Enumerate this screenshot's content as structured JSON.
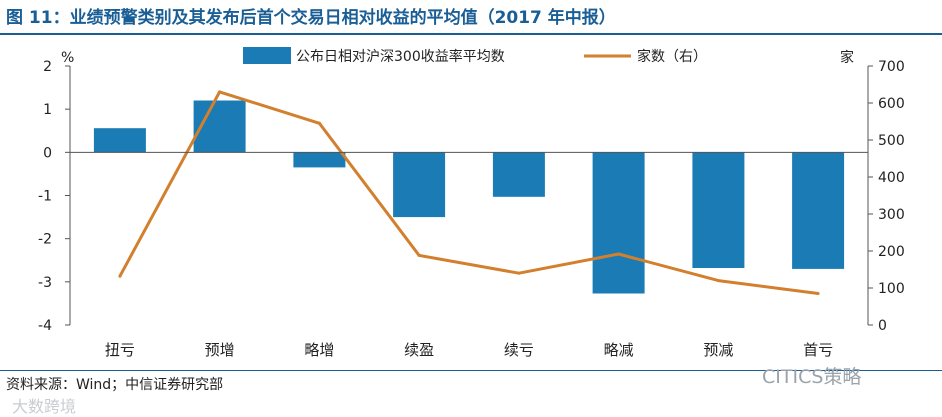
{
  "title": "图 11：业绩预警类别及其发布后首个交易日相对收益的平均值（2017 年中报）",
  "source": "资料来源：Wind；中信证券研究部",
  "watermark_right": "CITICS策略",
  "watermark_left": "大数跨境",
  "chart_data": {
    "type": "bar+line",
    "categories": [
      "扭亏",
      "预增",
      "略增",
      "续盈",
      "续亏",
      "略减",
      "预减",
      "首亏"
    ],
    "series": [
      {
        "name": "公布日相对沪深300收益率平均数",
        "type": "bar",
        "axis": "left",
        "color": "#1a7bb5",
        "values": [
          0.56,
          1.2,
          -0.35,
          -1.5,
          -1.03,
          -3.27,
          -2.68,
          -2.7
        ]
      },
      {
        "name": "家数（右）",
        "type": "line",
        "axis": "right",
        "color": "#d27f2e",
        "values": [
          132,
          630,
          545,
          188,
          140,
          192,
          120,
          85
        ]
      }
    ],
    "y_left": {
      "unit": "%",
      "min": -4,
      "max": 2,
      "ticks": [
        2,
        1,
        0,
        -1,
        -2,
        -3,
        -4
      ]
    },
    "y_right": {
      "unit": "家",
      "min": 0,
      "max": 700,
      "ticks": [
        700,
        600,
        500,
        400,
        300,
        200,
        100,
        0
      ]
    },
    "legend_position": "top"
  }
}
